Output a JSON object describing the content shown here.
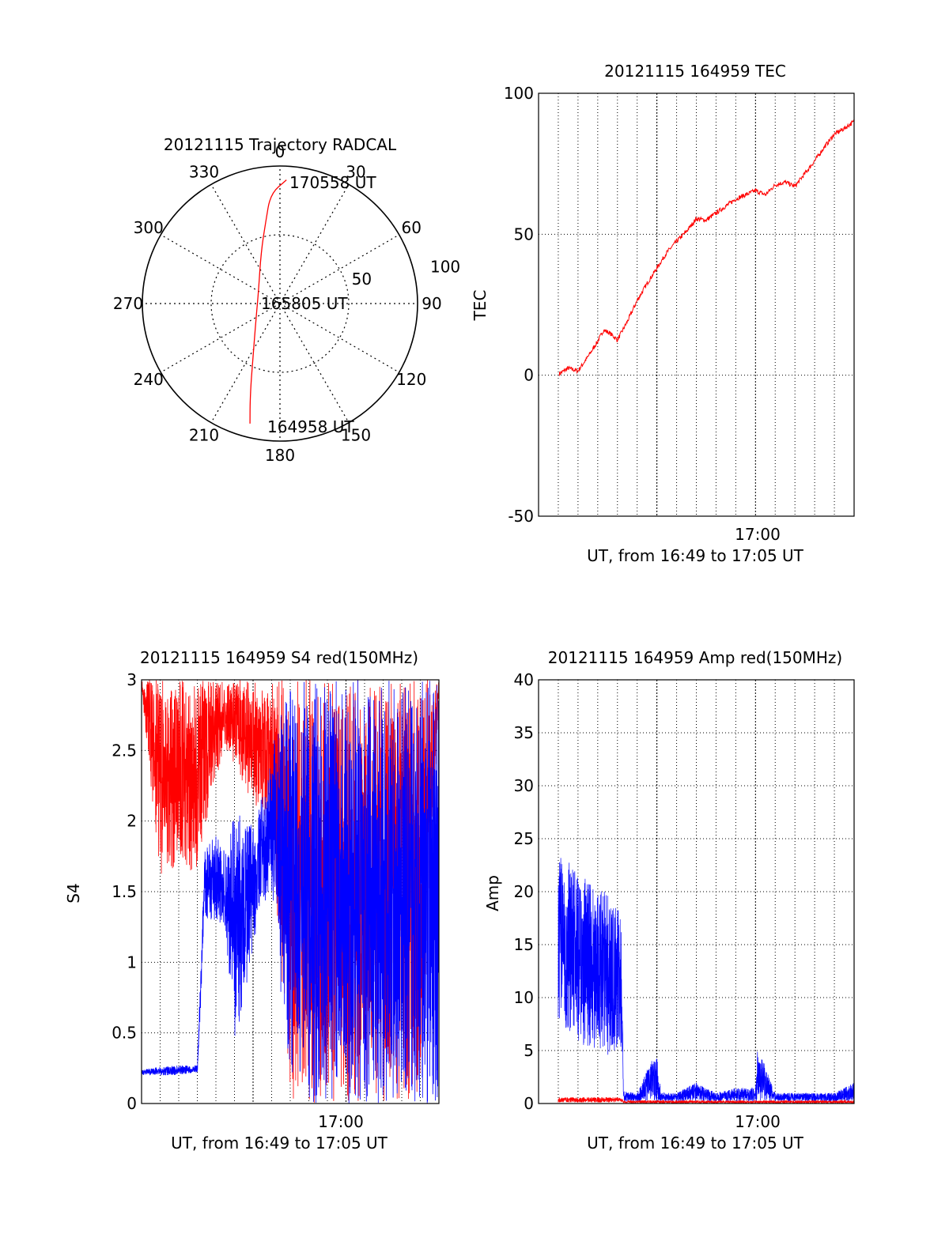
{
  "chart_data": [
    {
      "panel": "trajectory",
      "type": "polar",
      "title": "20121115 Trajectory RADCAL",
      "azimuth_labels": [
        "0",
        "30",
        "60",
        "90",
        "120",
        "150",
        "180",
        "210",
        "240",
        "270",
        "300",
        "330"
      ],
      "azimuths_deg": [
        0,
        30,
        60,
        90,
        120,
        150,
        180,
        210,
        240,
        270,
        300,
        330
      ],
      "radial_labels": [
        "50",
        "100"
      ],
      "radial_values": [
        50,
        100
      ],
      "radial_max": 100,
      "track": {
        "color": "#ff0000",
        "points": [
          {
            "az": 194,
            "r": 90,
            "time": "164958"
          },
          {
            "az": 198,
            "r": 70
          },
          {
            "az": 206,
            "r": 45
          },
          {
            "az": 240,
            "r": 20
          },
          {
            "az": 300,
            "r": 18
          },
          {
            "az": 340,
            "r": 40
          },
          {
            "az": 350,
            "r": 60
          },
          {
            "az": 355,
            "r": 80
          },
          {
            "az": 3,
            "r": 90,
            "time": "170558"
          }
        ]
      },
      "annotations": [
        "170558 UT",
        "165805 UT",
        "164958 UT"
      ]
    },
    {
      "panel": "tec",
      "type": "line",
      "title": "20121115 164959 TEC",
      "ylabel": "TEC",
      "xlabel": "UT, from 16:49 to 17:05 UT",
      "xtick_label": "17:00",
      "xtick_label_minute": 60,
      "xlim_minutes": [
        49,
        65
      ],
      "ylim": [
        -50,
        100
      ],
      "yticks": [
        -50,
        0,
        50,
        100
      ],
      "minor_grid_minutes": [
        50,
        51,
        52,
        53,
        54,
        55,
        56,
        57,
        58,
        59,
        61,
        62,
        63,
        64
      ],
      "major_grid_minutes": [
        55,
        60
      ],
      "series": [
        {
          "color": "#ff0000",
          "x_minutes": [
            50.05,
            50.5,
            51.0,
            51.5,
            52.0,
            52.3,
            52.6,
            53.0,
            53.5,
            54.0,
            54.5,
            55.0,
            55.5,
            56.0,
            56.5,
            57.0,
            57.5,
            58.0,
            58.5,
            59.0,
            59.5,
            60.0,
            60.5,
            61.0,
            61.5,
            62.0,
            62.5,
            63.0,
            63.5,
            64.0,
            64.5,
            65.0
          ],
          "values": [
            0.5,
            2.5,
            1.5,
            6.5,
            12.0,
            16.0,
            15.0,
            12.5,
            19.0,
            26.5,
            32.5,
            38.0,
            43.5,
            47.5,
            51.0,
            55.5,
            55.0,
            57.5,
            60.0,
            62.5,
            64.0,
            65.5,
            64.0,
            67.5,
            68.5,
            67.0,
            71.5,
            76.0,
            81.0,
            85.5,
            87.5,
            90.0
          ]
        }
      ]
    },
    {
      "panel": "s4",
      "type": "line",
      "title": "20121115 164959 S4 red(150MHz)",
      "ylabel": "S4",
      "xlabel": "UT, from 16:49 to 17:05 UT",
      "xtick_label": "17:00",
      "xtick_label_minute": 60,
      "xlim_minutes": [
        49,
        65
      ],
      "ylim": [
        0,
        3
      ],
      "yticks": [
        0,
        0.5,
        1,
        1.5,
        2,
        2.5,
        3
      ],
      "ytick_labels": [
        "0",
        "0.5",
        "1",
        "1.5",
        "2",
        "2.5",
        "3"
      ],
      "minor_grid_minutes": [
        50,
        51,
        52,
        53,
        54,
        55,
        56,
        57,
        58,
        59,
        61,
        62,
        63,
        64
      ],
      "major_grid_minutes": [
        55,
        60
      ],
      "series": [
        {
          "color": "#ff0000",
          "note_style": "dense oscillation between low and high bounds",
          "x_minutes": [
            49.0,
            50.0,
            51.0,
            52.0,
            52.5,
            53.0,
            53.5,
            54.0,
            55.0,
            56.0,
            57.0,
            58.0,
            59.0,
            60.0,
            61.0,
            62.0,
            63.0,
            64.0,
            65.0
          ],
          "low": [
            2.9,
            1.6,
            1.7,
            1.6,
            2.0,
            2.3,
            2.5,
            2.4,
            2.1,
            1.9,
            0.0,
            0.0,
            0.0,
            0.0,
            0.0,
            0.0,
            0.0,
            0.0,
            2.9
          ],
          "high": [
            3.0,
            3.0,
            3.0,
            3.0,
            3.0,
            3.0,
            3.0,
            3.0,
            3.0,
            3.0,
            3.0,
            3.0,
            3.0,
            3.0,
            3.0,
            3.0,
            3.0,
            3.0,
            3.0
          ]
        },
        {
          "color": "#0000ff",
          "note_style": "dense oscillation between low and high bounds",
          "x_minutes": [
            49.0,
            50.0,
            51.0,
            52.0,
            52.4,
            53.0,
            53.5,
            54.0,
            54.5,
            55.0,
            55.5,
            56.0,
            57.0,
            58.0,
            59.0,
            60.0,
            61.0,
            62.0,
            63.0,
            64.0,
            65.0
          ],
          "low": [
            0.2,
            0.2,
            0.2,
            0.22,
            1.3,
            1.3,
            1.2,
            0.45,
            0.7,
            1.1,
            1.4,
            1.5,
            0.0,
            0.0,
            0.0,
            0.0,
            0.0,
            0.0,
            0.0,
            0.0,
            0.0
          ],
          "high": [
            0.24,
            0.26,
            0.27,
            0.27,
            1.8,
            1.9,
            1.8,
            2.1,
            2.0,
            2.0,
            2.2,
            2.5,
            3.0,
            3.0,
            3.0,
            3.0,
            3.0,
            3.0,
            3.0,
            3.0,
            3.0
          ]
        }
      ]
    },
    {
      "panel": "amp",
      "type": "line",
      "title": "20121115 164959 Amp red(150MHz)",
      "ylabel": "Amp",
      "xlabel": "UT, from 16:49 to 17:05 UT",
      "xtick_label": "17:00",
      "xtick_label_minute": 60,
      "xlim_minutes": [
        49,
        65
      ],
      "ylim": [
        0,
        40
      ],
      "yticks": [
        0,
        5,
        10,
        15,
        20,
        25,
        30,
        35,
        40
      ],
      "minor_grid_minutes": [
        50,
        51,
        52,
        53,
        54,
        55,
        56,
        57,
        58,
        59,
        61,
        62,
        63,
        64
      ],
      "major_grid_minutes": [
        55,
        60
      ],
      "series": [
        {
          "color": "#0000ff",
          "note_style": "dense oscillation between low and high bounds",
          "x_minutes": [
            50.0,
            50.5,
            51.0,
            51.5,
            52.0,
            52.5,
            53.0,
            53.2,
            53.3,
            54.0,
            54.8,
            55.0,
            55.2,
            56.0,
            57.0,
            58.0,
            59.0,
            60.0,
            60.1,
            61.0,
            62.0,
            63.0,
            64.0,
            65.0
          ],
          "low": [
            8.0,
            6.0,
            5.5,
            5.0,
            5.0,
            4.5,
            5.0,
            5.0,
            0.2,
            0.2,
            0.2,
            0.2,
            0.2,
            0.2,
            0.2,
            0.2,
            0.2,
            0.2,
            0.2,
            0.2,
            0.2,
            0.2,
            0.2,
            0.2
          ],
          "high": [
            24.0,
            23.0,
            22.0,
            21.0,
            20.5,
            20.0,
            19.0,
            17.0,
            1.2,
            1.0,
            4.5,
            4.5,
            1.0,
            1.0,
            2.0,
            1.0,
            1.5,
            1.5,
            5.5,
            1.0,
            1.0,
            1.0,
            1.0,
            2.0
          ]
        },
        {
          "color": "#ff0000",
          "note_style": "dense oscillation between low and high bounds",
          "x_minutes": [
            50.0,
            53.2,
            53.3,
            65.0
          ],
          "low": [
            0.1,
            0.1,
            0.0,
            0.0
          ],
          "high": [
            0.6,
            0.6,
            0.3,
            0.3
          ]
        }
      ]
    }
  ]
}
